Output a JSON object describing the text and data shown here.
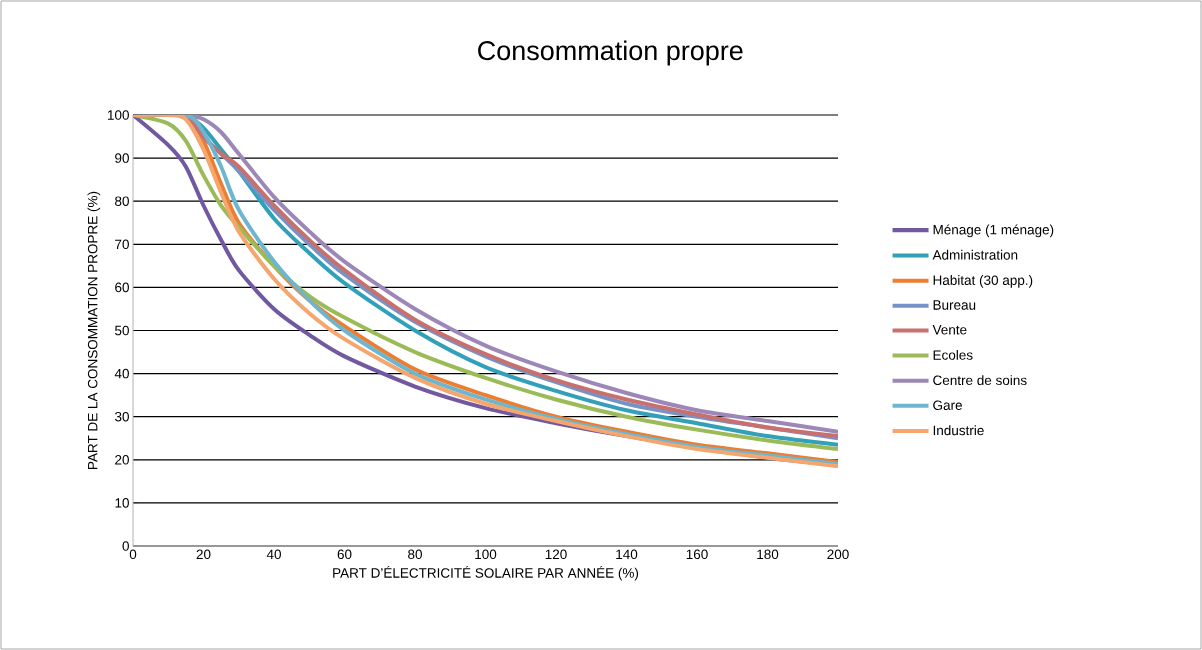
{
  "chart_data": {
    "type": "line",
    "title": "Consommation propre",
    "xlabel": "PART D’ÉLECTRICITÉ SOLAIRE PAR ANNÉE (%)",
    "ylabel": "PART DE LA CONSOMMATION PROPRE (%)",
    "x": [
      0,
      10,
      15,
      20,
      25,
      30,
      40,
      50,
      60,
      80,
      100,
      120,
      140,
      160,
      180,
      200
    ],
    "series": [
      {
        "name": "Ménage (1 ménage)",
        "color": "#71589f",
        "values": [
          100,
          93,
          88,
          79,
          71,
          64,
          55,
          49,
          44,
          37,
          32,
          28.5,
          25.5,
          23,
          20.5,
          18.8
        ]
      },
      {
        "name": "Administration",
        "color": "#31a0b8",
        "values": [
          100,
          100,
          100,
          97,
          92,
          87,
          76,
          68,
          61,
          50,
          41.5,
          36,
          31.5,
          28.5,
          25.5,
          23.5
        ]
      },
      {
        "name": "Habitat (30 app.)",
        "color": "#ed7d31",
        "values": [
          100,
          100,
          100,
          94,
          84,
          75,
          65,
          57,
          51,
          41,
          35,
          30,
          26.5,
          23.5,
          21.5,
          19.5
        ]
      },
      {
        "name": "Bureau",
        "color": "#7593c8",
        "x": [
          0,
          15,
          20,
          25,
          30,
          40,
          50,
          60,
          80,
          100,
          120,
          140,
          160,
          180,
          200
        ],
        "values": [
          100,
          100,
          95,
          91,
          87,
          78,
          70,
          63,
          52,
          44,
          38,
          33,
          30,
          27.5,
          25
        ]
      },
      {
        "name": "Vente",
        "color": "#c8706e",
        "values": [
          100,
          100,
          100,
          95,
          91,
          88,
          79,
          71,
          64,
          52.5,
          44.5,
          38.5,
          34,
          30.5,
          27.5,
          25.5
        ]
      },
      {
        "name": "Ecoles",
        "color": "#9bbb59",
        "values": [
          100,
          98,
          94,
          86,
          79,
          74,
          65,
          58,
          53,
          45,
          39,
          34,
          30,
          27,
          24.5,
          22.5
        ]
      },
      {
        "name": "Centre de soins",
        "color": "#9d86b8",
        "values": [
          100,
          100,
          100,
          99,
          96,
          91,
          81,
          73,
          66,
          55,
          46.5,
          40.5,
          35.5,
          31.5,
          29,
          26.5
        ]
      },
      {
        "name": "Gare",
        "color": "#6db6cf",
        "x": [
          0,
          15,
          20,
          25,
          30,
          40,
          50,
          60,
          80,
          100,
          120,
          140,
          160,
          180,
          200
        ],
        "values": [
          100,
          100,
          96,
          88,
          78,
          66,
          57,
          50,
          40,
          34,
          29.5,
          26,
          23,
          21,
          19
        ]
      },
      {
        "name": "Industrie",
        "color": "#f5a66e",
        "values": [
          100,
          100,
          99,
          92,
          82,
          73,
          62,
          54,
          48,
          39,
          33,
          29,
          25.5,
          22.5,
          20.5,
          18.5
        ]
      }
    ],
    "xlim": [
      0,
      200
    ],
    "ylim": [
      0,
      100
    ],
    "xticks": [
      0,
      20,
      40,
      60,
      80,
      100,
      120,
      140,
      160,
      180,
      200
    ],
    "yticks": [
      0,
      10,
      20,
      30,
      40,
      50,
      60,
      70,
      80,
      90,
      100
    ],
    "grid": "y",
    "legend": "right"
  }
}
